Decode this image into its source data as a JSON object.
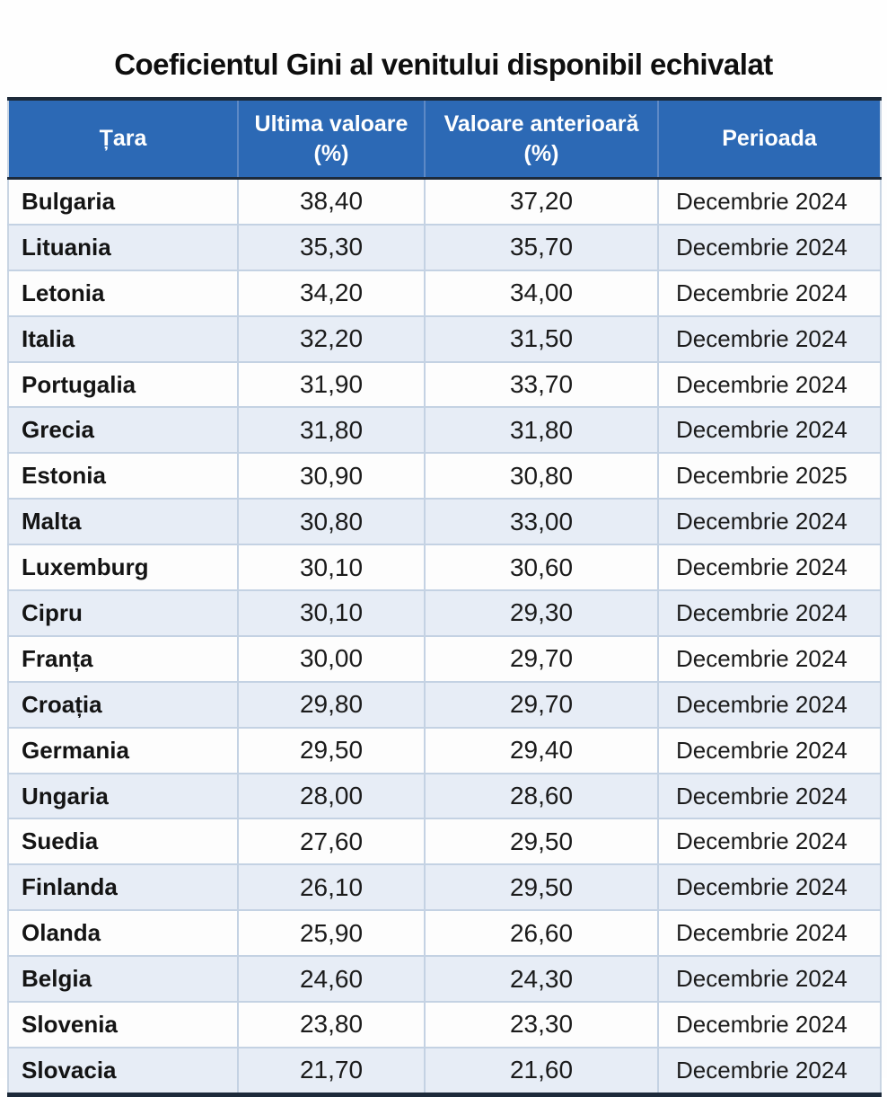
{
  "page": {
    "title": "Coeficientul Gini al venitului disponibil echivalat"
  },
  "colors": {
    "header_bg": "#2c69b5",
    "header_text": "#ffffff",
    "row_bg": "#fdfdfd",
    "row_alt_bg": "#e7edf6",
    "grid_line": "#c4d2e3",
    "dark_border": "#1d2a3a",
    "title_text": "#0e0e0e"
  },
  "chart_data": {
    "type": "table",
    "title": "Coeficientul Gini al venitului disponibil echivalat",
    "columns": [
      "Țara",
      "Ultima valoare (%)",
      "Valoare anterioară (%)",
      "Perioada"
    ],
    "header_lines": [
      [
        "Țara"
      ],
      [
        "Ultima valoare",
        "(%)"
      ],
      [
        "Valoare anterioară",
        "(%)"
      ],
      [
        "Perioada"
      ]
    ],
    "rows": [
      {
        "country": "Bulgaria",
        "last": "38,40",
        "previous": "37,20",
        "period": "Decembrie 2024"
      },
      {
        "country": "Lituania",
        "last": "35,30",
        "previous": "35,70",
        "period": "Decembrie 2024"
      },
      {
        "country": "Letonia",
        "last": "34,20",
        "previous": "34,00",
        "period": "Decembrie 2024"
      },
      {
        "country": "Italia",
        "last": "32,20",
        "previous": "31,50",
        "period": "Decembrie 2024"
      },
      {
        "country": "Portugalia",
        "last": "31,90",
        "previous": "33,70",
        "period": "Decembrie 2024"
      },
      {
        "country": "Grecia",
        "last": "31,80",
        "previous": "31,80",
        "period": "Decembrie 2024"
      },
      {
        "country": "Estonia",
        "last": "30,90",
        "previous": "30,80",
        "period": "Decembrie 2025"
      },
      {
        "country": "Malta",
        "last": "30,80",
        "previous": "33,00",
        "period": "Decembrie 2024"
      },
      {
        "country": "Luxemburg",
        "last": "30,10",
        "previous": "30,60",
        "period": "Decembrie 2024"
      },
      {
        "country": "Cipru",
        "last": "30,10",
        "previous": "29,30",
        "period": "Decembrie 2024"
      },
      {
        "country": "Franța",
        "last": "30,00",
        "previous": "29,70",
        "period": "Decembrie 2024"
      },
      {
        "country": "Croația",
        "last": "29,80",
        "previous": "29,70",
        "period": "Decembrie 2024"
      },
      {
        "country": "Germania",
        "last": "29,50",
        "previous": "29,40",
        "period": "Decembrie 2024"
      },
      {
        "country": "Ungaria",
        "last": "28,00",
        "previous": "28,60",
        "period": "Decembrie 2024"
      },
      {
        "country": "Suedia",
        "last": "27,60",
        "previous": "29,50",
        "period": "Decembrie 2024"
      },
      {
        "country": "Finlanda",
        "last": "26,10",
        "previous": "29,50",
        "period": "Decembrie 2024"
      },
      {
        "country": "Olanda",
        "last": "25,90",
        "previous": "26,60",
        "period": "Decembrie 2024"
      },
      {
        "country": "Belgia",
        "last": "24,60",
        "previous": "24,30",
        "period": "Decembrie 2024"
      },
      {
        "country": "Slovenia",
        "last": "23,80",
        "previous": "23,30",
        "period": "Decembrie 2024"
      },
      {
        "country": "Slovacia",
        "last": "21,70",
        "previous": "21,60",
        "period": "Decembrie 2024"
      }
    ]
  }
}
